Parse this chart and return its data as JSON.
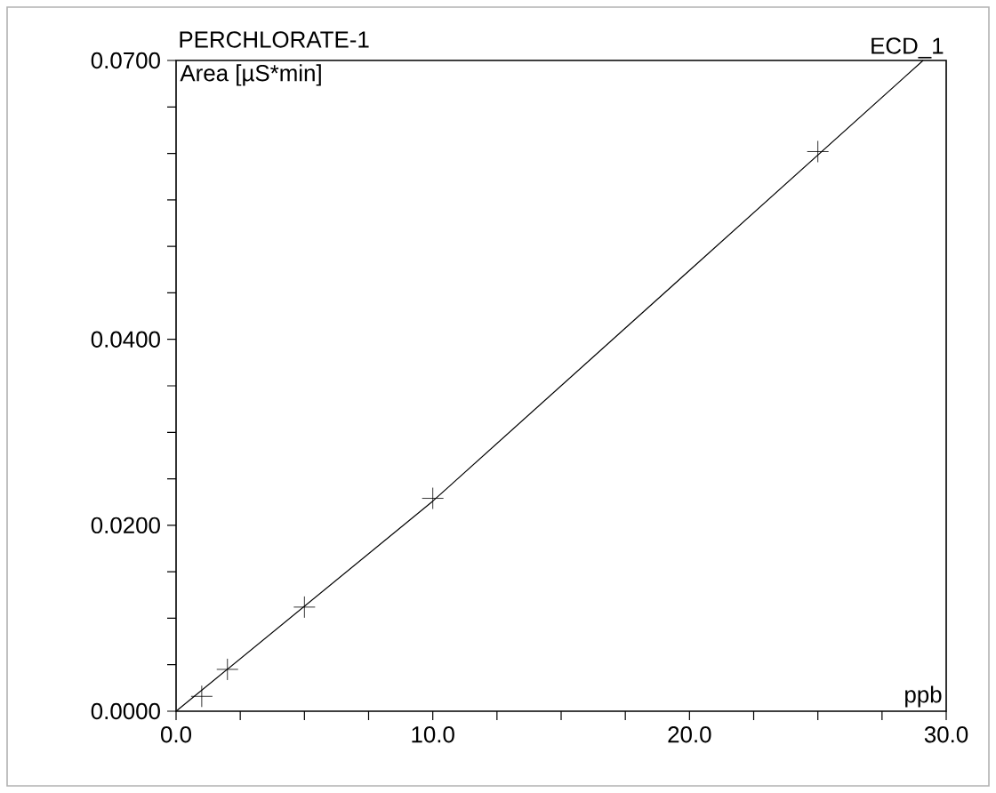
{
  "chart_data": {
    "type": "scatter",
    "title": "PERCHLORATE-1",
    "xlabel": "ppb",
    "ylabel": "Area  [µS*min]",
    "annotations": [
      "ECD_1"
    ],
    "series": [
      {
        "color": "#000000",
        "marker": "cross",
        "x": [
          1,
          2,
          5,
          10,
          25
        ],
        "values": [
          0.0016,
          0.0045,
          0.0112,
          0.0229,
          0.0602
        ]
      },
      {
        "type": "line",
        "color": "#000000",
        "marker": "none",
        "line_style": "solid",
        "x": [
          0,
          10,
          29.1
        ],
        "values": [
          0,
          0.0226,
          0.07
        ]
      }
    ],
    "xlim": [
      0,
      30
    ],
    "ylim": [
      0,
      0.07
    ],
    "xticks": [
      {
        "value": 0,
        "label": "0.0"
      },
      {
        "value": 2.5,
        "label": null
      },
      {
        "value": 5,
        "label": null
      },
      {
        "value": 7.5,
        "label": null
      },
      {
        "value": 10,
        "label": "10.0"
      },
      {
        "value": 12.5,
        "label": null
      },
      {
        "value": 15,
        "label": null
      },
      {
        "value": 17.5,
        "label": null
      },
      {
        "value": 20,
        "label": "20.0"
      },
      {
        "value": 22.5,
        "label": null
      },
      {
        "value": 25,
        "label": null
      },
      {
        "value": 27.5,
        "label": null
      },
      {
        "value": 30,
        "label": "30.0"
      }
    ],
    "yticks": [
      {
        "value": 0,
        "label": "0.0000"
      },
      {
        "value": 0.005,
        "label": null
      },
      {
        "value": 0.01,
        "label": null
      },
      {
        "value": 0.015,
        "label": null
      },
      {
        "value": 0.02,
        "label": "0.0200"
      },
      {
        "value": 0.025,
        "label": null
      },
      {
        "value": 0.03,
        "label": null
      },
      {
        "value": 0.035,
        "label": null
      },
      {
        "value": 0.04,
        "label": "0.0400"
      },
      {
        "value": 0.045,
        "label": null
      },
      {
        "value": 0.05,
        "label": null
      },
      {
        "value": 0.055,
        "label": null
      },
      {
        "value": 0.06,
        "label": null
      },
      {
        "value": 0.065,
        "label": null
      },
      {
        "value": 0.07,
        "label": "0.0700"
      }
    ],
    "grid": false
  }
}
